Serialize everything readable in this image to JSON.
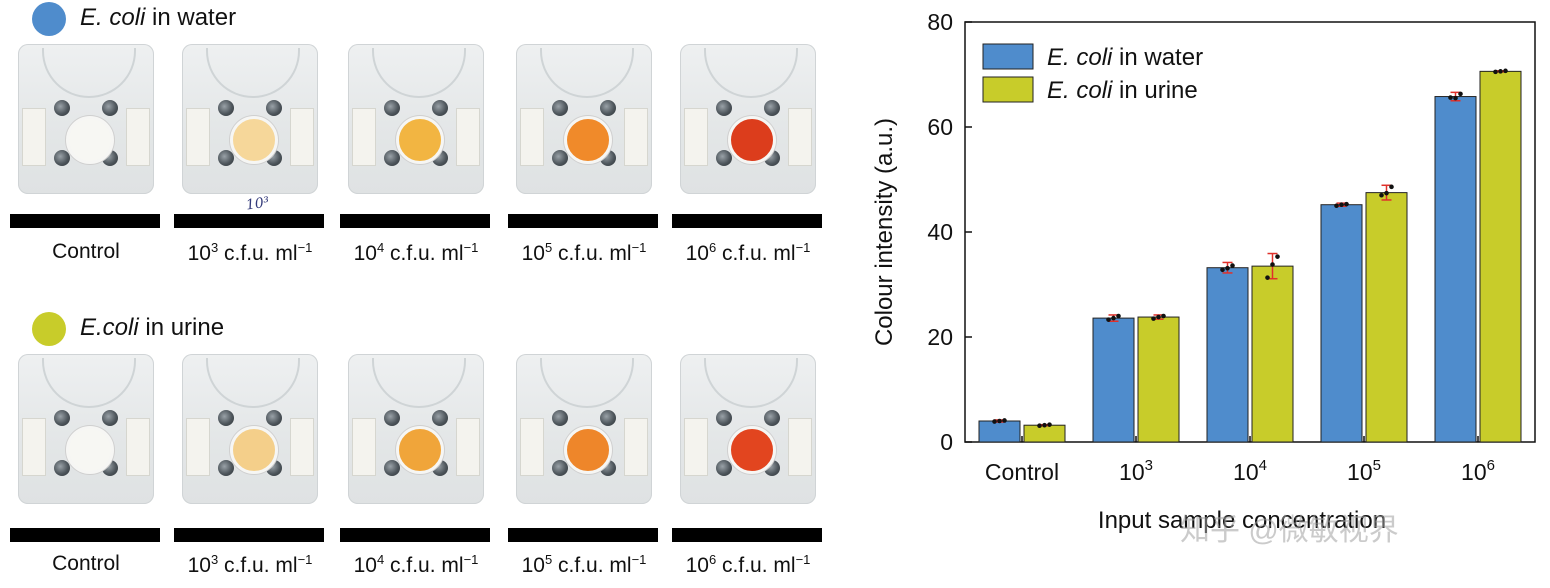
{
  "panel_water": {
    "title_italic": "E. coli",
    "title_rest": " in water",
    "color": "#4f8ccc"
  },
  "panel_urine": {
    "title_italic": "E.coli",
    "title_rest": " in urine",
    "color": "#c8cc2a"
  },
  "captions": [
    {
      "base": "Control",
      "exp": "",
      "unit": ""
    },
    {
      "base": "10",
      "exp": "3",
      "unit": " c.f.u. ml",
      "unit_exp": "−1"
    },
    {
      "base": "10",
      "exp": "4",
      "unit": " c.f.u. ml",
      "unit_exp": "−1"
    },
    {
      "base": "10",
      "exp": "5",
      "unit": " c.f.u. ml",
      "unit_exp": "−1"
    },
    {
      "base": "10",
      "exp": "6",
      "unit": " c.f.u. ml",
      "unit_exp": "−1"
    }
  ],
  "well_colors_water": [
    "#f7f7f3",
    "#f6d79a",
    "#f2b542",
    "#f08a2a",
    "#dc3d1c"
  ],
  "well_colors_urine": [
    "#f7f7f3",
    "#f4cf8a",
    "#f0a53a",
    "#ee862a",
    "#e2451f"
  ],
  "handwritten_label": "10³",
  "watermark": "知乎 @微敏视界",
  "chart_data": {
    "type": "bar",
    "categories": [
      {
        "base": "Control",
        "exp": ""
      },
      {
        "base": "10",
        "exp": "3"
      },
      {
        "base": "10",
        "exp": "4"
      },
      {
        "base": "10",
        "exp": "5"
      },
      {
        "base": "10",
        "exp": "6"
      }
    ],
    "series": [
      {
        "name_italic": "E. coli",
        "name_rest": " in water",
        "color": "#4f8ccc",
        "values": [
          4.0,
          23.6,
          33.2,
          45.2,
          65.8
        ],
        "errors": [
          0.2,
          0.6,
          1.0,
          0.3,
          0.8
        ],
        "points": [
          [
            3.9,
            4.0,
            4.1
          ],
          [
            23.3,
            23.6,
            24.0
          ],
          [
            32.8,
            33.1,
            33.6
          ],
          [
            45.0,
            45.2,
            45.3
          ],
          [
            65.6,
            65.5,
            66.3
          ]
        ]
      },
      {
        "name_italic": "E. coli",
        "name_rest": " in urine",
        "color": "#c8cc2a",
        "values": [
          3.2,
          23.8,
          33.5,
          47.5,
          70.6
        ],
        "errors": [
          0.1,
          0.4,
          2.4,
          1.4,
          0.1
        ],
        "points": [
          [
            3.1,
            3.2,
            3.3
          ],
          [
            23.5,
            23.8,
            24.0
          ],
          [
            31.3,
            33.8,
            35.3
          ],
          [
            47.0,
            47.4,
            48.6
          ],
          [
            70.5,
            70.6,
            70.7
          ]
        ]
      }
    ],
    "ylabel": "Colour intensity (a.u.)",
    "xlabel": "Input sample concentration",
    "ylim": [
      0,
      80
    ],
    "yticks": [
      0,
      20,
      40,
      60,
      80
    ],
    "legend_position": "top-left",
    "grid": false
  }
}
